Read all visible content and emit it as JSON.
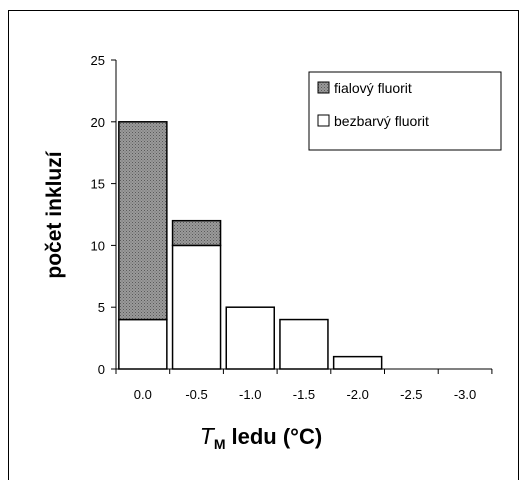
{
  "chart_data": {
    "type": "bar",
    "stacked": true,
    "categories": [
      "0.0",
      "-0.5",
      "-1.0",
      "-1.5",
      "-2.0",
      "-2.5",
      "-3.0"
    ],
    "series": [
      {
        "name": "bezbarvý fluorit",
        "values": [
          4,
          10,
          5,
          4,
          1,
          0,
          0
        ],
        "fill": "#ffffff"
      },
      {
        "name": "fialový fluorit",
        "values": [
          16,
          2,
          0,
          0,
          0,
          0,
          0
        ],
        "fill": "#8a8a8a"
      }
    ],
    "legend_order": [
      "fialový fluorit",
      "bezbarvý fluorit"
    ],
    "legend_position": "top-right",
    "ylabel": "počet inkluzí",
    "xlabel": {
      "symbol": "T",
      "subscript": "M",
      "rest": "ledu (°C)"
    },
    "yticks": [
      "0",
      "5",
      "10",
      "15",
      "20",
      "25"
    ],
    "ylim": [
      0,
      25
    ],
    "grid": false
  }
}
